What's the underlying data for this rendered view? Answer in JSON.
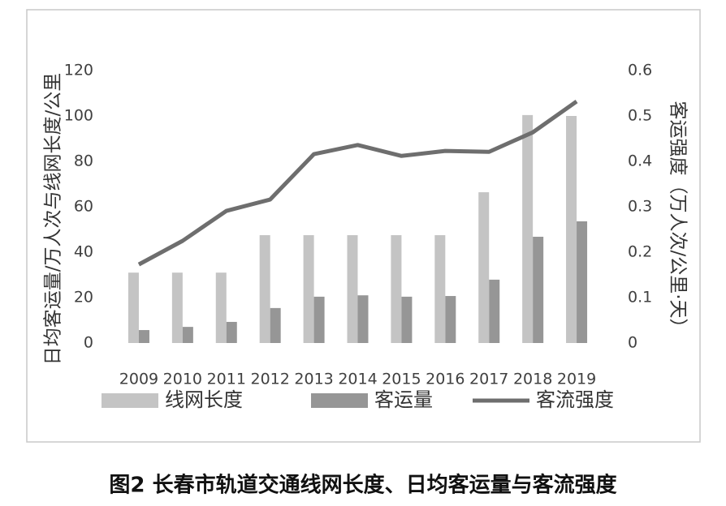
{
  "chart_data": {
    "type": "bar",
    "title": "图2 长春市轨道交通线网长度、日均客运量与客流强度",
    "ylabel": "日均客运量/万人次与线网长度/公里",
    "y2label": "客运强度（万人次/公里·天）",
    "categories": [
      "2009",
      "2010",
      "2011",
      "2012",
      "2013",
      "2014",
      "2015",
      "2016",
      "2017",
      "2018",
      "2019"
    ],
    "series": [
      {
        "name": "线网长度",
        "type": "bar",
        "color": "#c4c4c4",
        "values": [
          31,
          31,
          31,
          47.5,
          47.5,
          47.5,
          47.5,
          47.5,
          66.4,
          100.4,
          100
        ]
      },
      {
        "name": "客运量",
        "type": "bar",
        "color": "#969696",
        "values": [
          5.7,
          7.1,
          9.3,
          15.4,
          20.4,
          21,
          20.4,
          20.7,
          27.9,
          46.8,
          53.6
        ]
      },
      {
        "name": "客流强度",
        "type": "line",
        "axis": "y2",
        "color": "#6e6e6e",
        "values": [
          0.173,
          0.225,
          0.291,
          0.316,
          0.416,
          0.436,
          0.412,
          0.423,
          0.421,
          0.464,
          0.532
        ]
      }
    ],
    "ylim": [
      0,
      120
    ],
    "yticks": [
      0,
      20,
      40,
      60,
      80,
      100,
      120
    ],
    "y2lim": [
      0,
      0.6
    ],
    "y2ticks": [
      0,
      0.1,
      0.2,
      0.3,
      0.4,
      0.5,
      0.6
    ],
    "grid": false,
    "legend": "bottom"
  }
}
